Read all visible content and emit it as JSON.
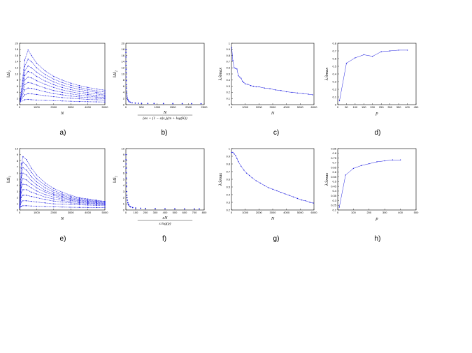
{
  "figure": {
    "panel_labels": [
      "a)",
      "b)",
      "c)",
      "d)",
      "e)",
      "f)",
      "g)",
      "h)"
    ],
    "colors": {
      "series": "#2020e0",
      "axis": "#000000"
    }
  },
  "chart_data": [
    {
      "id": "a",
      "type": "line",
      "panel_label": "a)",
      "xlabel": "N",
      "ylabel": "‖Δ‖₂",
      "xlim": [
        0,
        5000
      ],
      "ylim": [
        0,
        20
      ],
      "xticks": [
        0,
        1000,
        2000,
        3000,
        4000,
        5000
      ],
      "yticks": [
        0,
        2,
        4,
        6,
        8,
        10,
        12,
        14,
        16,
        18,
        20
      ],
      "style": "dotted-lines",
      "series": [
        {
          "x": [
            50,
            300,
            500,
            700,
            1000,
            1500,
            2000,
            2500,
            3000,
            3500,
            4000,
            4500,
            5000
          ],
          "y": [
            2.0,
            14.5,
            17.8,
            16.0,
            13.5,
            11.0,
            9.2,
            8.0,
            7.0,
            6.2,
            5.6,
            5.1,
            4.7
          ]
        },
        {
          "x": [
            50,
            300,
            500,
            700,
            1000,
            1500,
            2000,
            2500,
            3000,
            3500,
            4000,
            4500,
            5000
          ],
          "y": [
            2.0,
            12.5,
            14.8,
            14.0,
            12.0,
            9.8,
            8.3,
            7.2,
            6.3,
            5.6,
            5.0,
            4.5,
            4.1
          ]
        },
        {
          "x": [
            50,
            300,
            500,
            700,
            1000,
            1500,
            2000,
            2500,
            3000,
            3500,
            4000,
            4500,
            5000
          ],
          "y": [
            2.0,
            11.0,
            12.6,
            12.0,
            10.6,
            8.8,
            7.4,
            6.4,
            5.6,
            5.0,
            4.5,
            4.0,
            3.6
          ]
        },
        {
          "x": [
            50,
            300,
            500,
            700,
            1000,
            1500,
            2000,
            2500,
            3000,
            3500,
            4000,
            4500,
            5000
          ],
          "y": [
            2.0,
            9.5,
            10.8,
            10.4,
            9.2,
            7.7,
            6.5,
            5.6,
            4.9,
            4.3,
            3.9,
            3.5,
            3.1
          ]
        },
        {
          "x": [
            50,
            300,
            500,
            700,
            1000,
            1500,
            2000,
            2500,
            3000,
            3500,
            4000,
            4500,
            5000
          ],
          "y": [
            1.8,
            8.0,
            9.0,
            8.7,
            7.8,
            6.6,
            5.6,
            4.8,
            4.2,
            3.7,
            3.3,
            3.0,
            2.7
          ]
        },
        {
          "x": [
            50,
            300,
            500,
            700,
            1000,
            1500,
            2000,
            2500,
            3000,
            3500,
            4000,
            4500,
            5000
          ],
          "y": [
            1.6,
            6.5,
            7.2,
            7.0,
            6.4,
            5.4,
            4.6,
            4.0,
            3.5,
            3.1,
            2.8,
            2.5,
            2.3
          ]
        },
        {
          "x": [
            50,
            300,
            500,
            700,
            1000,
            1500,
            2000,
            2500,
            3000,
            3500,
            4000,
            4500,
            5000
          ],
          "y": [
            1.4,
            4.8,
            5.4,
            5.3,
            4.9,
            4.2,
            3.6,
            3.2,
            2.8,
            2.5,
            2.3,
            2.1,
            1.9
          ]
        },
        {
          "x": [
            50,
            300,
            500,
            700,
            1000,
            1500,
            2000,
            2500,
            3000,
            3500,
            4000,
            4500,
            5000
          ],
          "y": [
            1.2,
            3.2,
            3.6,
            3.5,
            3.3,
            2.9,
            2.6,
            2.3,
            2.1,
            1.9,
            1.7,
            1.6,
            1.5
          ]
        },
        {
          "x": [
            50,
            300,
            500,
            700,
            1000,
            1500,
            2000,
            2500,
            3000,
            3500,
            4000,
            4500,
            5000
          ],
          "y": [
            0.9,
            1.6,
            1.7,
            1.6,
            1.5,
            1.4,
            1.3,
            1.2,
            1.1,
            1.0,
            0.95,
            0.9,
            0.85
          ]
        }
      ]
    },
    {
      "id": "b",
      "type": "scatter",
      "panel_label": "b)",
      "xlabel": "N",
      "xlabel_denominator": "(αs + (1 − α)s₂)(m + log(K))",
      "ylabel": "‖Δ‖₂",
      "xlim": [
        0,
        2500
      ],
      "ylim": [
        0,
        20
      ],
      "xticks": [
        0,
        500,
        1000,
        1500,
        2000,
        2500
      ],
      "yticks": [
        0,
        2,
        4,
        6,
        8,
        10,
        12,
        14,
        16,
        18,
        20
      ],
      "series": [
        {
          "x": [
            2,
            3,
            4,
            5,
            6,
            7,
            8,
            10,
            12,
            15,
            18,
            22,
            28,
            35,
            45,
            60,
            80,
            100,
            140,
            200,
            300,
            400,
            500,
            700,
            900,
            1200,
            1500,
            1800,
            2100,
            2400
          ],
          "y": [
            18,
            17,
            15.5,
            14,
            12.8,
            11.5,
            10.5,
            9,
            7.8,
            6.5,
            5.4,
            4.4,
            3.5,
            2.8,
            2.2,
            1.7,
            1.3,
            1.0,
            0.8,
            0.6,
            0.5,
            0.45,
            0.42,
            0.4,
            0.38,
            0.36,
            0.35,
            0.34,
            0.33,
            0.32
          ]
        }
      ]
    },
    {
      "id": "c",
      "type": "line",
      "panel_label": "c)",
      "xlabel": "N",
      "ylabel": "λ/λmax",
      "xlim": [
        0,
        6000
      ],
      "ylim": [
        0,
        1
      ],
      "xticks": [
        0,
        1000,
        2000,
        3000,
        4000,
        5000,
        6000
      ],
      "yticks": [
        0,
        0.1,
        0.2,
        0.3,
        0.4,
        0.5,
        0.6,
        0.7,
        0.8,
        0.9,
        1
      ],
      "series": [
        {
          "x": [
            20,
            100,
            200,
            300,
            400,
            500,
            600,
            700,
            800,
            900,
            1000,
            1200,
            1400,
            1600,
            1800,
            2000,
            2400,
            2800,
            3200,
            3600,
            4000,
            4400,
            4800,
            5200,
            5600,
            5900
          ],
          "y": [
            0.93,
            0.72,
            0.6,
            0.59,
            0.58,
            0.47,
            0.45,
            0.43,
            0.38,
            0.36,
            0.34,
            0.33,
            0.31,
            0.3,
            0.29,
            0.29,
            0.27,
            0.26,
            0.24,
            0.23,
            0.21,
            0.2,
            0.19,
            0.18,
            0.17,
            0.16
          ]
        }
      ]
    },
    {
      "id": "d",
      "type": "line",
      "panel_label": "d)",
      "xlabel": "p",
      "ylabel": "λ/λmax",
      "xlim": [
        0,
        450
      ],
      "ylim": [
        0,
        0.8
      ],
      "xticks": [
        0,
        50,
        100,
        150,
        200,
        250,
        300,
        350,
        400,
        450
      ],
      "yticks": [
        0,
        0.1,
        0.2,
        0.3,
        0.4,
        0.5,
        0.6,
        0.7,
        0.8
      ],
      "series": [
        {
          "x": [
            10,
            50,
            100,
            150,
            200,
            250,
            300,
            350,
            400
          ],
          "y": [
            0.05,
            0.54,
            0.61,
            0.65,
            0.63,
            0.69,
            0.7,
            0.71,
            0.71
          ]
        }
      ]
    },
    {
      "id": "e",
      "type": "line",
      "panel_label": "e)",
      "xlabel": "N",
      "ylabel": "‖Δ‖₂",
      "xlim": [
        0,
        5000
      ],
      "ylim": [
        0,
        10
      ],
      "xticks": [
        0,
        1000,
        2000,
        3000,
        4000,
        5000
      ],
      "yticks": [
        0,
        1,
        2,
        3,
        4,
        5,
        6,
        7,
        8,
        9,
        10
      ],
      "style": "dotted-lines",
      "series": [
        {
          "x": [
            20,
            100,
            200,
            400,
            700,
            1000,
            1500,
            2000,
            2500,
            3000,
            3500,
            4000,
            4500,
            5000
          ],
          "y": [
            1.0,
            7.5,
            8.7,
            8.2,
            6.8,
            5.7,
            4.4,
            3.5,
            2.9,
            2.4,
            2.0,
            1.8,
            1.6,
            1.4
          ]
        },
        {
          "x": [
            20,
            100,
            200,
            400,
            700,
            1000,
            1500,
            2000,
            2500,
            3000,
            3500,
            4000,
            4500,
            5000
          ],
          "y": [
            1.0,
            6.8,
            7.8,
            7.3,
            6.1,
            5.1,
            4.0,
            3.2,
            2.6,
            2.2,
            1.9,
            1.7,
            1.5,
            1.35
          ]
        },
        {
          "x": [
            20,
            100,
            200,
            400,
            700,
            1000,
            1500,
            2000,
            2500,
            3000,
            3500,
            4000,
            4500,
            5000
          ],
          "y": [
            0.9,
            6.0,
            6.9,
            6.5,
            5.4,
            4.6,
            3.6,
            2.9,
            2.4,
            2.0,
            1.75,
            1.55,
            1.4,
            1.3
          ]
        },
        {
          "x": [
            20,
            100,
            200,
            400,
            700,
            1000,
            1500,
            2000,
            2500,
            3000,
            3500,
            4000,
            4500,
            5000
          ],
          "y": [
            0.9,
            5.3,
            6.0,
            5.7,
            4.8,
            4.1,
            3.2,
            2.6,
            2.2,
            1.85,
            1.6,
            1.45,
            1.3,
            1.2
          ]
        },
        {
          "x": [
            20,
            100,
            200,
            400,
            700,
            1000,
            1500,
            2000,
            2500,
            3000,
            3500,
            4000,
            4500,
            5000
          ],
          "y": [
            0.8,
            4.5,
            5.1,
            4.9,
            4.2,
            3.6,
            2.9,
            2.4,
            2.0,
            1.7,
            1.5,
            1.35,
            1.2,
            1.1
          ]
        },
        {
          "x": [
            20,
            100,
            200,
            400,
            700,
            1000,
            1500,
            2000,
            2500,
            3000,
            3500,
            4000,
            4500,
            5000
          ],
          "y": [
            0.7,
            3.7,
            4.2,
            4.1,
            3.6,
            3.1,
            2.5,
            2.1,
            1.8,
            1.55,
            1.35,
            1.2,
            1.1,
            1.0
          ]
        },
        {
          "x": [
            20,
            100,
            200,
            400,
            700,
            1000,
            1500,
            2000,
            2500,
            3000,
            3500,
            4000,
            4500,
            5000
          ],
          "y": [
            0.6,
            2.9,
            3.3,
            3.3,
            2.9,
            2.6,
            2.1,
            1.8,
            1.55,
            1.35,
            1.2,
            1.1,
            1.0,
            0.9
          ]
        },
        {
          "x": [
            20,
            100,
            200,
            400,
            700,
            1000,
            1500,
            2000,
            2500,
            3000,
            3500,
            4000,
            4500,
            5000
          ],
          "y": [
            0.5,
            2.1,
            2.4,
            2.4,
            2.2,
            2.0,
            1.7,
            1.45,
            1.3,
            1.15,
            1.05,
            0.95,
            0.9,
            0.85
          ]
        },
        {
          "x": [
            20,
            100,
            200,
            400,
            700,
            1000,
            1500,
            2000,
            2500,
            3000,
            3500,
            4000,
            4500,
            5000
          ],
          "y": [
            0.4,
            1.3,
            1.5,
            1.5,
            1.4,
            1.3,
            1.15,
            1.0,
            0.95,
            0.9,
            0.85,
            0.8,
            0.75,
            0.7
          ]
        },
        {
          "x": [
            20,
            100,
            200,
            400,
            700,
            1000,
            1500,
            2000,
            2500,
            3000,
            3500,
            4000,
            4500,
            5000
          ],
          "y": [
            0.3,
            0.6,
            0.7,
            0.7,
            0.65,
            0.6,
            0.55,
            0.5,
            0.48,
            0.45,
            0.43,
            0.42,
            0.4,
            0.4
          ]
        }
      ]
    },
    {
      "id": "f",
      "type": "scatter",
      "panel_label": "f)",
      "xlabel": "εN",
      "xlabel_denominator": "s log(p)",
      "ylabel": "‖Δ‖₂",
      "xlim": [
        0,
        800
      ],
      "ylim": [
        0,
        10
      ],
      "xticks": [
        0,
        100,
        200,
        300,
        400,
        500,
        600,
        700,
        800
      ],
      "yticks": [
        0,
        1,
        2,
        3,
        4,
        5,
        6,
        7,
        8,
        9,
        10
      ],
      "series": [
        {
          "x": [
            1,
            1.5,
            2,
            2.5,
            3,
            4,
            5,
            6,
            8,
            10,
            12,
            15,
            20,
            25,
            30,
            40,
            50,
            70,
            100,
            150,
            200,
            300,
            400,
            500,
            600,
            700,
            750
          ],
          "y": [
            9,
            8.2,
            7.5,
            6.8,
            6.1,
            5.2,
            4.4,
            3.8,
            3.0,
            2.4,
            2.0,
            1.6,
            1.2,
            0.95,
            0.8,
            0.6,
            0.5,
            0.4,
            0.33,
            0.28,
            0.25,
            0.22,
            0.2,
            0.19,
            0.18,
            0.17,
            0.17
          ]
        }
      ]
    },
    {
      "id": "g",
      "type": "line",
      "panel_label": "g)",
      "xlabel": "N",
      "ylabel": "λ/λmax",
      "xlim": [
        0,
        6000
      ],
      "ylim": [
        0.2,
        1
      ],
      "xticks": [
        0,
        1000,
        2000,
        3000,
        4000,
        5000,
        6000
      ],
      "yticks": [
        0.2,
        0.3,
        0.4,
        0.5,
        0.6,
        0.7,
        0.8,
        0.9,
        1
      ],
      "series": [
        {
          "x": [
            20,
            100,
            200,
            300,
            400,
            500,
            700,
            900,
            1100,
            1300,
            1500,
            1800,
            2100,
            2400,
            2700,
            3000,
            3300,
            3600,
            3900,
            4200,
            4500,
            4800,
            5100,
            5400,
            5700,
            5950
          ],
          "y": [
            0.95,
            0.95,
            0.93,
            0.91,
            0.87,
            0.83,
            0.77,
            0.72,
            0.68,
            0.65,
            0.62,
            0.58,
            0.55,
            0.52,
            0.49,
            0.47,
            0.45,
            0.43,
            0.41,
            0.39,
            0.37,
            0.35,
            0.33,
            0.32,
            0.3,
            0.29
          ]
        }
      ]
    },
    {
      "id": "h",
      "type": "line",
      "panel_label": "h)",
      "xlabel": "p",
      "ylabel": "λ/λmax",
      "xlim": [
        0,
        500
      ],
      "ylim": [
        0.2,
        0.85
      ],
      "xticks": [
        0,
        100,
        200,
        300,
        400,
        500
      ],
      "yticks": [
        0.2,
        0.25,
        0.3,
        0.35,
        0.4,
        0.45,
        0.5,
        0.55,
        0.6,
        0.65,
        0.7,
        0.75,
        0.8,
        0.85
      ],
      "series": [
        {
          "x": [
            10,
            50,
            100,
            150,
            200,
            250,
            300,
            350,
            400
          ],
          "y": [
            0.23,
            0.57,
            0.64,
            0.67,
            0.69,
            0.71,
            0.72,
            0.73,
            0.73
          ]
        }
      ]
    }
  ]
}
